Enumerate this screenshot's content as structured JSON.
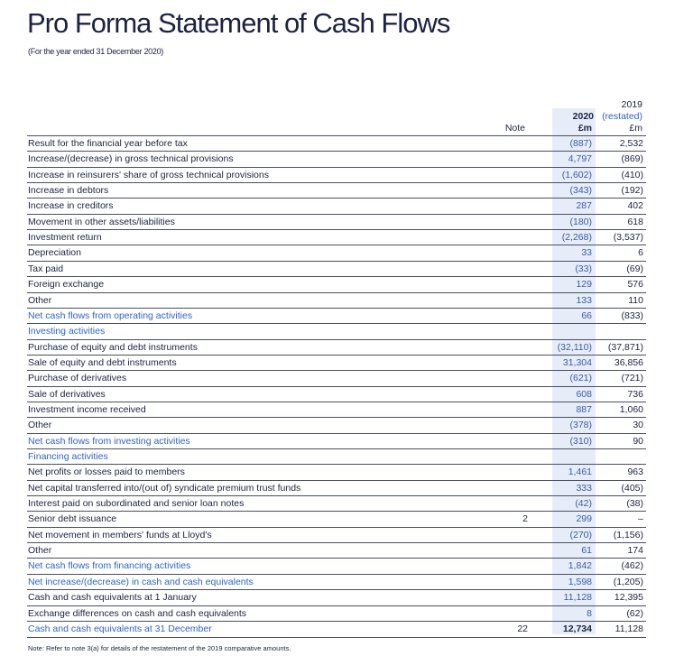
{
  "header": {
    "title": "Pro Forma Statement of Cash Flows",
    "subtitle": "(For the year ended 31 December 2020)"
  },
  "table": {
    "columns": {
      "note": "Note",
      "year_2020": "2020",
      "unit_2020": "£m",
      "year_2019": "2019",
      "restated": "(restated)",
      "unit_2019": "£m"
    },
    "subtotal_color": "#2f63c8",
    "rows": [
      {
        "label": "Result for the financial year before tax",
        "v2020": "(887)",
        "v2019": "2,532"
      },
      {
        "label": "Increase/(decrease) in gross technical provisions",
        "v2020": "4,797",
        "v2019": "(869)"
      },
      {
        "label": "Increase in reinsurers' share of gross technical provisions",
        "v2020": "(1,602)",
        "v2019": "(410)"
      },
      {
        "label": "Increase in debtors",
        "v2020": "(343)",
        "v2019": "(192)"
      },
      {
        "label": "Increase in creditors",
        "v2020": "287",
        "v2019": "402"
      },
      {
        "label": "Movement in other assets/liabilities",
        "v2020": "(180)",
        "v2019": "618"
      },
      {
        "label": "Investment return",
        "v2020": "(2,268)",
        "v2019": "(3,537)"
      },
      {
        "label": "Depreciation",
        "v2020": "33",
        "v2019": "6"
      },
      {
        "label": "Tax paid",
        "v2020": "(33)",
        "v2019": "(69)"
      },
      {
        "label": "Foreign exchange",
        "v2020": "129",
        "v2019": "576"
      },
      {
        "label": "Other",
        "v2020": "133",
        "v2019": "110"
      },
      {
        "label": "Net cash flows from operating activities",
        "v2020": "66",
        "v2019": "(833)",
        "subtotal": true
      },
      {
        "label": "Investing activities",
        "subtotal": true
      },
      {
        "label": "Purchase of equity and debt instruments",
        "v2020": "(32,110)",
        "v2019": "(37,871)"
      },
      {
        "label": "Sale of equity and debt instruments",
        "v2020": "31,304",
        "v2019": "36,856"
      },
      {
        "label": "Purchase of derivatives",
        "v2020": "(621)",
        "v2019": "(721)"
      },
      {
        "label": "Sale of derivatives",
        "v2020": "608",
        "v2019": "736"
      },
      {
        "label": "Investment income received",
        "v2020": "887",
        "v2019": "1,060"
      },
      {
        "label": "Other",
        "v2020": "(378)",
        "v2019": "30"
      },
      {
        "label": "Net cash flows from investing activities",
        "v2020": "(310)",
        "v2019": "90",
        "subtotal": true
      },
      {
        "label": "Financing activities",
        "subtotal": true
      },
      {
        "label": "Net profits or losses paid to members",
        "v2020": "1,461",
        "v2019": "963"
      },
      {
        "label": "Net capital transferred into/(out of) syndicate premium trust funds",
        "v2020": "333",
        "v2019": "(405)"
      },
      {
        "label": "Interest paid on subordinated and senior loan notes",
        "v2020": "(42)",
        "v2019": "(38)"
      },
      {
        "label": "Senior debt issuance",
        "note": "2",
        "v2020": "299",
        "v2019": "–"
      },
      {
        "label": "Net movement in members' funds at Lloyd's",
        "v2020": "(270)",
        "v2019": "(1,156)"
      },
      {
        "label": "Other",
        "v2020": "61",
        "v2019": "174"
      },
      {
        "label": "Net cash flows from financing activities",
        "v2020": "1,842",
        "v2019": "(462)",
        "subtotal": true
      },
      {
        "label": "Net increase/(decrease) in cash and cash equivalents",
        "v2020": "1,598",
        "v2019": "(1,205)",
        "subtotal": true
      },
      {
        "label": "Cash and cash equivalents at 1 January",
        "v2020": "11,128",
        "v2019": "12,395"
      },
      {
        "label": "Exchange differences on cash and cash equivalents",
        "v2020": "8",
        "v2019": "(62)"
      },
      {
        "label": "Cash and cash equivalents at 31 December",
        "note": "22",
        "v2020": "12,734",
        "v2019": "11,128",
        "subtotal": true,
        "bold2020": true
      }
    ]
  },
  "footer": {
    "note": "Note: Refer to note 3(a) for details of the restatement of the 2019 comparative amounts."
  }
}
